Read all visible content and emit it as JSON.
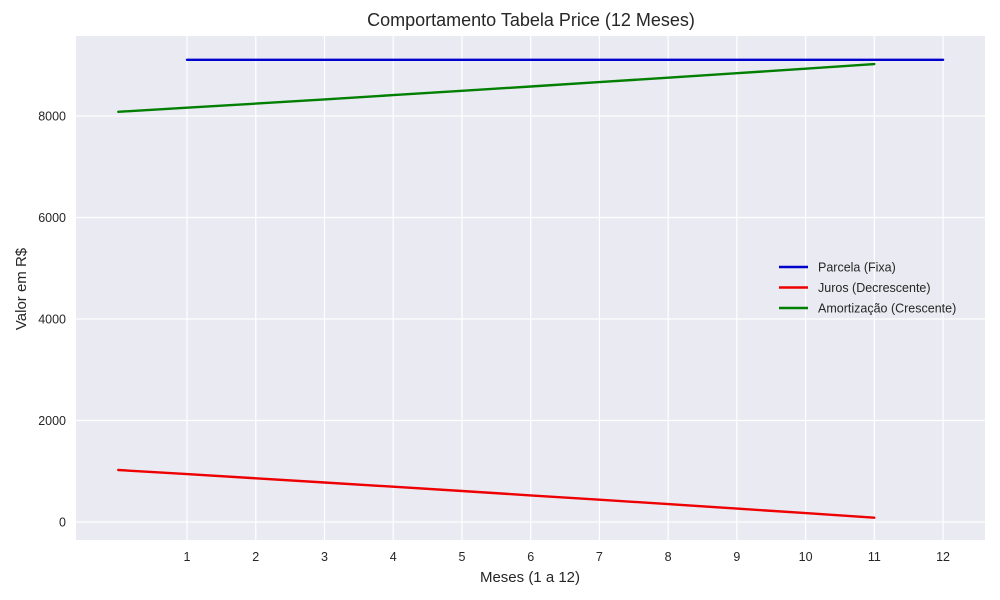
{
  "chart_data": {
    "type": "line",
    "title": "Comportamento Tabela Price (12 Meses)",
    "xlabel": "Meses (1 a 12)",
    "ylabel": "Valor em R$",
    "xticks": [
      1,
      2,
      3,
      4,
      5,
      6,
      7,
      8,
      9,
      10,
      11,
      12
    ],
    "yticks": [
      0,
      2000,
      4000,
      6000,
      8000
    ],
    "xlim": [
      -0.6,
      12.6
    ],
    "ylim": [
      -350,
      9950
    ],
    "grid": true,
    "legend_position": "center right",
    "series": [
      {
        "name": "Parcela (Fixa)",
        "color": "#0000cc",
        "x": [
          1,
          2,
          3,
          4,
          5,
          6,
          7,
          8,
          9,
          10,
          11,
          12
        ],
        "values": [
          9107,
          9107,
          9107,
          9107,
          9107,
          9107,
          9107,
          9107,
          9107,
          9107,
          9107,
          9107
        ]
      },
      {
        "name": "Juros (Decrescente)",
        "color": "#ee0000",
        "x": [
          0,
          1,
          2,
          3,
          4,
          5,
          6,
          7,
          8,
          9,
          10,
          11
        ],
        "values": [
          1025,
          944,
          862,
          779,
          695,
          610,
          525,
          439,
          352,
          264,
          175,
          85
        ]
      },
      {
        "name": "Amortização (Crescente)",
        "color": "#007f00",
        "x": [
          0,
          1,
          2,
          3,
          4,
          5,
          6,
          7,
          8,
          9,
          10,
          11
        ],
        "values": [
          8082,
          8163,
          8245,
          8328,
          8412,
          8496,
          8582,
          8668,
          8755,
          8843,
          8932,
          9022
        ]
      }
    ]
  },
  "colors": {
    "plot_background": "#eaeaf2",
    "grid": "#ffffff"
  }
}
